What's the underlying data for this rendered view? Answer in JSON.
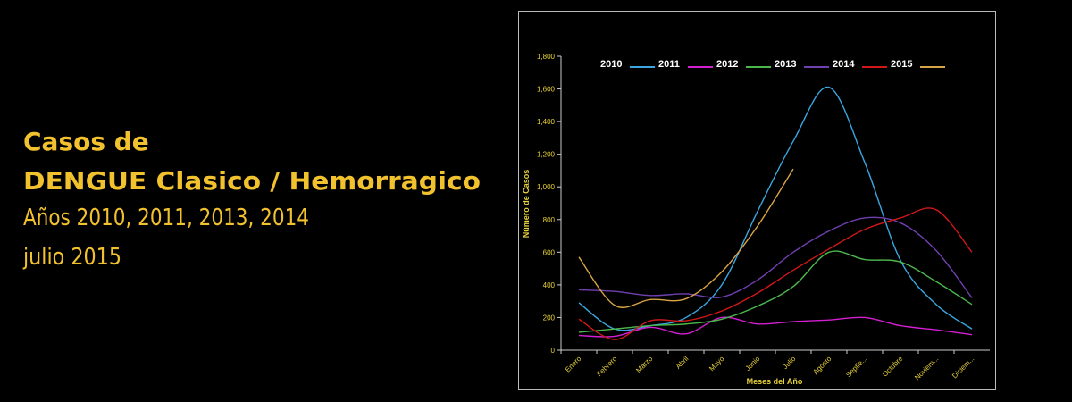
{
  "heading": [
    "Casos de",
    "DENGUE Clasico / Hemorragico",
    "Años 2010, 2011, 2013, 2014",
    "julio 2015"
  ],
  "chart_data": {
    "type": "line",
    "x_label": "Meses del Año",
    "y_label": "Número de Casos",
    "categories": [
      "Enero",
      "Febrero",
      "Marzo",
      "Abril",
      "Mayo",
      "Junio",
      "Julio",
      "Agosto",
      "Septie...",
      "Octubre",
      "Noviem...",
      "Diciem..."
    ],
    "series": [
      {
        "name": "2010",
        "color": "#3aa6e0",
        "values": [
          290,
          130,
          150,
          200,
          400,
          850,
          1280,
          1610,
          1150,
          550,
          280,
          130
        ]
      },
      {
        "name": "2011",
        "color": "#d21fd2",
        "values": [
          90,
          85,
          140,
          100,
          200,
          160,
          175,
          185,
          200,
          150,
          125,
          95
        ]
      },
      {
        "name": "2012",
        "color": "#4cb84c",
        "values": [
          110,
          130,
          150,
          160,
          190,
          270,
          390,
          600,
          555,
          540,
          420,
          280
        ]
      },
      {
        "name": "2013",
        "color": "#7040b0",
        "values": [
          370,
          360,
          335,
          345,
          325,
          430,
          600,
          730,
          810,
          780,
          610,
          320
        ]
      },
      {
        "name": "2014",
        "color": "#d01818",
        "values": [
          190,
          65,
          180,
          180,
          240,
          350,
          490,
          620,
          740,
          810,
          860,
          600
        ]
      },
      {
        "name": "2015",
        "color": "#d9a446",
        "values": [
          570,
          275,
          310,
          315,
          480,
          760,
          1110,
          null,
          null,
          null,
          null,
          null
        ]
      }
    ],
    "ylim": [
      0,
      1800
    ],
    "yticks": [
      0,
      200,
      400,
      600,
      800,
      {
        "value": 1000,
        "label": "1,000"
      },
      {
        "value": 1200,
        "label": "1,200"
      },
      {
        "value": 1400,
        "label": "1,400"
      },
      {
        "value": 1600,
        "label": "1,600"
      },
      {
        "value": 1800,
        "label": "1,800"
      }
    ],
    "grid": false,
    "legend": "top"
  }
}
